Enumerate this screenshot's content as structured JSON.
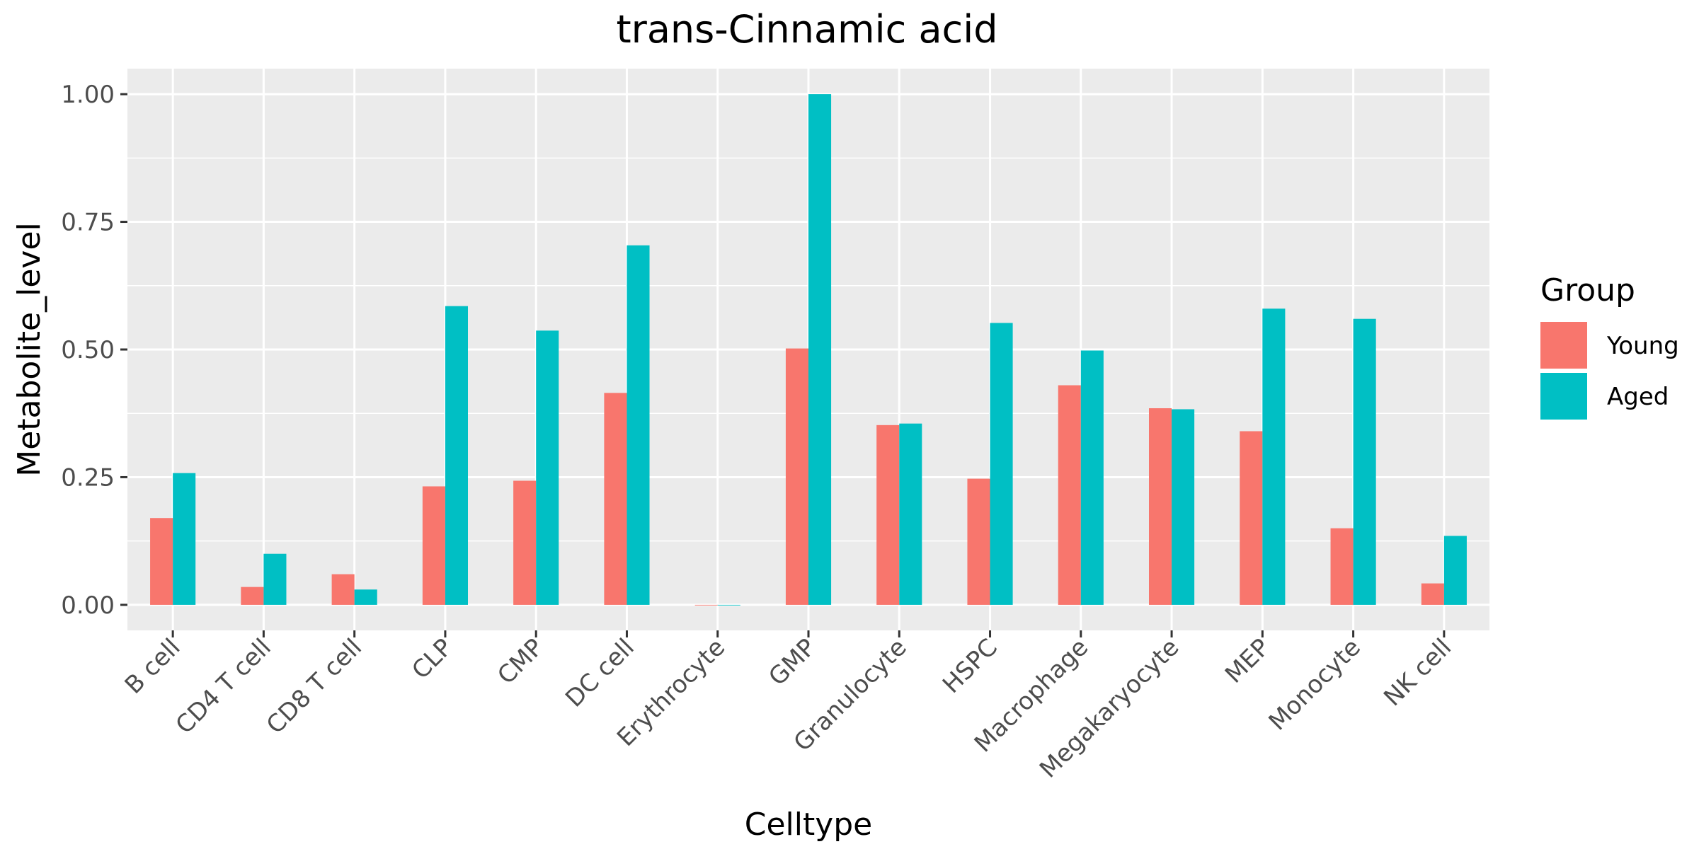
{
  "chart_data": {
    "type": "bar",
    "title": "trans-Cinnamic acid",
    "xlabel": "Celltype",
    "ylabel": "Metabolite_level",
    "ylim": [
      -0.05,
      1.05
    ],
    "yticks": [
      0.0,
      0.25,
      0.5,
      0.75,
      1.0
    ],
    "ytick_labels": [
      "0.00",
      "0.25",
      "0.50",
      "0.75",
      "1.00"
    ],
    "grid": true,
    "legend": {
      "title": "Group",
      "position": "right"
    },
    "categories": [
      "B cell",
      "CD4 T cell",
      "CD8 T cell",
      "CLP",
      "CMP",
      "DC cell",
      "Erythrocyte",
      "GMP",
      "Granulocyte",
      "HSPC",
      "Macrophage",
      "Megakaryocyte",
      "MEP",
      "Monocyte",
      "NK cell"
    ],
    "series": [
      {
        "name": "Young",
        "color": "#F8766D",
        "values": [
          0.17,
          0.035,
          0.06,
          0.232,
          0.243,
          0.415,
          0.0,
          0.502,
          0.352,
          0.247,
          0.43,
          0.385,
          0.34,
          0.15,
          0.042
        ]
      },
      {
        "name": "Aged",
        "color": "#00BFC4",
        "values": [
          0.258,
          0.1,
          0.03,
          0.585,
          0.537,
          0.704,
          0.0,
          1.0,
          0.355,
          0.552,
          0.498,
          0.383,
          0.58,
          0.56,
          0.135
        ]
      }
    ]
  }
}
